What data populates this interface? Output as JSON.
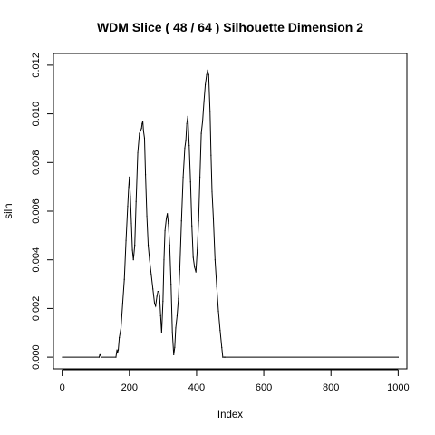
{
  "chart_data": {
    "type": "line",
    "title": "WDM Slice ( 48 / 64 )  Silhouette Dimension 2",
    "xlabel": "Index",
    "ylabel": "silh",
    "xlim": [
      -26,
      1026
    ],
    "ylim": [
      -0.00048,
      0.01248
    ],
    "x_ticks": [
      0,
      200,
      400,
      600,
      800,
      1000
    ],
    "y_ticks": [
      0.0,
      0.002,
      0.004,
      0.006,
      0.008,
      0.01,
      0.012
    ],
    "x_tick_labels": [
      "0",
      "200",
      "400",
      "600",
      "800",
      "1000"
    ],
    "y_tick_labels": [
      "0.000",
      "0.002",
      "0.004",
      "0.006",
      "0.008",
      "0.010",
      "0.012"
    ],
    "grid": false,
    "series": [
      {
        "x": [
          1,
          110,
          112,
          114,
          116,
          160,
          163,
          165,
          167,
          170,
          175,
          180,
          185,
          190,
          195,
          198,
          200,
          203,
          206,
          209,
          212,
          216,
          220,
          225,
          230,
          233,
          236,
          238,
          240,
          242,
          245,
          248,
          252,
          256,
          260,
          265,
          270,
          275,
          278,
          282,
          285,
          288,
          290,
          293,
          296,
          300,
          303,
          306,
          310,
          313,
          316,
          320,
          324,
          328,
          332,
          335,
          338,
          342,
          346,
          350,
          355,
          360,
          365,
          368,
          371,
          374,
          378,
          382,
          386,
          390,
          394,
          398,
          402,
          406,
          410,
          414,
          418,
          422,
          426,
          430,
          433,
          436,
          440,
          443,
          446,
          450,
          455,
          460,
          465,
          470,
          475,
          478,
          482,
          485,
          1000
        ],
        "y": [
          0,
          0,
          0.0001,
          0.0001,
          0,
          0,
          0.0003,
          0.0002,
          0.0003,
          0.0008,
          0.0012,
          0.0022,
          0.0032,
          0.0048,
          0.0062,
          0.007,
          0.0074,
          0.0066,
          0.0055,
          0.0044,
          0.004,
          0.0046,
          0.0064,
          0.0084,
          0.0092,
          0.0093,
          0.0094,
          0.0096,
          0.0097,
          0.0093,
          0.009,
          0.0075,
          0.0058,
          0.0046,
          0.004,
          0.0034,
          0.0028,
          0.0022,
          0.0021,
          0.0025,
          0.0027,
          0.0027,
          0.0025,
          0.0017,
          0.001,
          0.0023,
          0.004,
          0.0052,
          0.0057,
          0.0059,
          0.0055,
          0.0046,
          0.003,
          0.001,
          0.0001,
          0.0004,
          0.0012,
          0.0017,
          0.0024,
          0.0036,
          0.0056,
          0.0074,
          0.0086,
          0.0089,
          0.0096,
          0.0099,
          0.0087,
          0.0072,
          0.0054,
          0.0041,
          0.0037,
          0.0035,
          0.0044,
          0.0056,
          0.0074,
          0.0092,
          0.0097,
          0.0105,
          0.0112,
          0.0116,
          0.0118,
          0.0116,
          0.0101,
          0.0083,
          0.0068,
          0.0057,
          0.004,
          0.0029,
          0.0019,
          0.0011,
          0.0004,
          0,
          0,
          0,
          0
        ]
      }
    ]
  }
}
